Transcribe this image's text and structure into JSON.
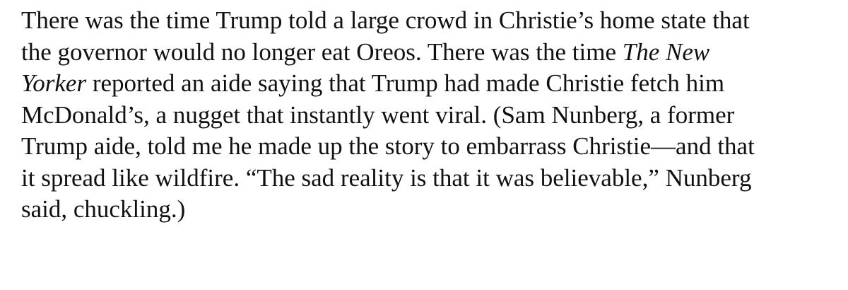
{
  "article": {
    "paragraph": {
      "lines": [
        [
          "There was the time Trump told a large crowd in Christie’s home state that"
        ],
        [
          "the governor would no longer eat Oreos. There was the time ",
          "The New"
        ],
        [
          "Yorker",
          " reported an aide saying that Trump had made Christie fetch him"
        ],
        [
          "McDonald’s, a nugget that instantly went viral. (Sam Nunberg, a former"
        ],
        [
          "Trump aide, told me he made up the story to embarrass Christie—and that"
        ],
        [
          "it spread like wildfire. “The sad reality is that it was believable,” Nunberg"
        ],
        [
          "said, chuckling.)"
        ]
      ]
    }
  }
}
